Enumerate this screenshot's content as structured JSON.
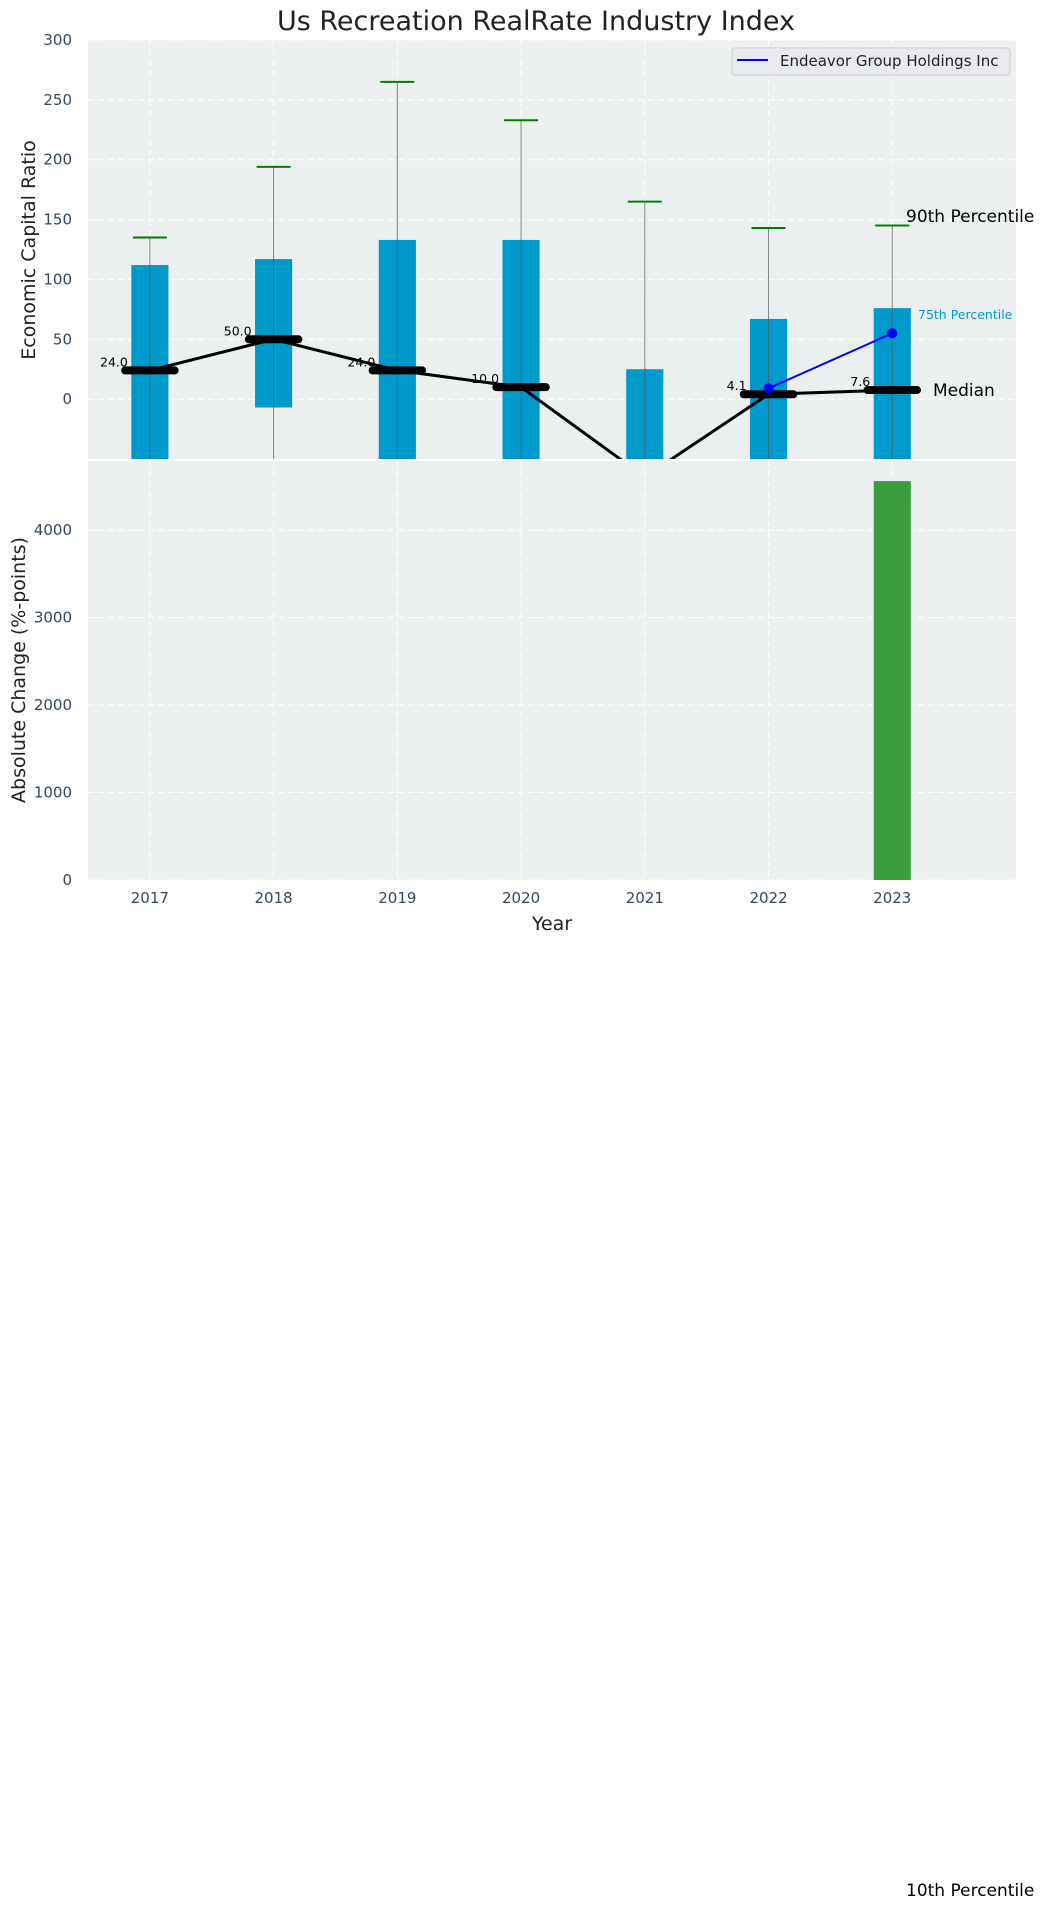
{
  "chart_data": [
    {
      "type": "bar",
      "title": "Us Recreation RealRate Industry Index",
      "xlabel": "",
      "ylabel": "Economic Capital Ratio",
      "ylim": [
        -50,
        300
      ],
      "xlim": [
        2016.5,
        2024.0
      ],
      "yticks": [
        0,
        50,
        100,
        150,
        200,
        250,
        300
      ],
      "grid": true,
      "categories": [
        2017,
        2018,
        2019,
        2020,
        2021,
        2022,
        2023
      ],
      "p25": [
        -100,
        -7,
        -100,
        -100,
        -100,
        -100,
        -100
      ],
      "p75": [
        112,
        117,
        133,
        133,
        25,
        67,
        76
      ],
      "p90": [
        135,
        194,
        265,
        233,
        165,
        143,
        145
      ],
      "median": [
        24,
        50,
        24,
        10,
        -65,
        4.1,
        7.6
      ],
      "median_labels": [
        "24.0",
        "50.0",
        "24.0",
        "10.0",
        "",
        "4.1",
        "7.6"
      ],
      "company": {
        "name": "Endeavor Group Holdings Inc",
        "x": [
          2022,
          2023
        ],
        "values": [
          9,
          55
        ],
        "color": "#0000ff"
      },
      "legend": {
        "placement": "top-right",
        "entries": [
          "Endeavor Group Holdings Inc"
        ]
      },
      "annotations": {
        "p90": "90th Percentile",
        "p75": "75th Percentile",
        "median": "Median",
        "p10": "10th Percentile"
      },
      "colors": {
        "box": "#0099cc",
        "whisker_cap": "#008000",
        "median": "#000000",
        "bg": "#eceff0"
      }
    },
    {
      "type": "bar",
      "xlabel": "Year",
      "ylabel": "Absolute Change (%-points)",
      "ylim": [
        0,
        4790
      ],
      "yticks": [
        0,
        1000,
        2000,
        3000,
        4000
      ],
      "grid": true,
      "categories": [
        2017,
        2018,
        2019,
        2020,
        2021,
        2022,
        2023
      ],
      "values": [
        0,
        0,
        0,
        0,
        0,
        0,
        4560
      ],
      "color": "#3a9e3c"
    }
  ]
}
